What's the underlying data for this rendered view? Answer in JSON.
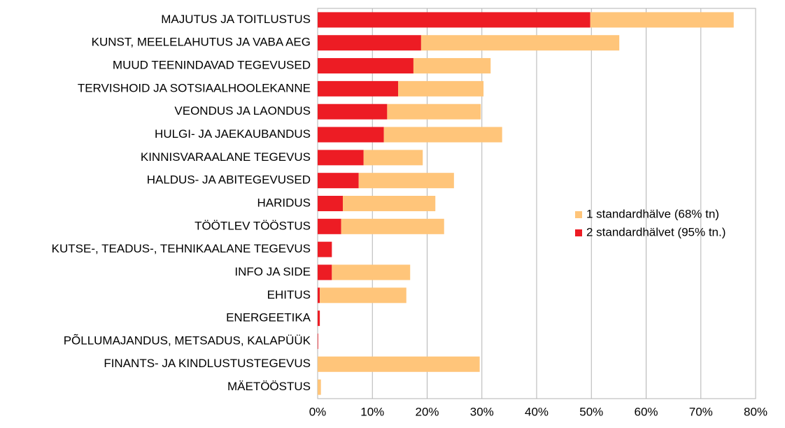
{
  "chart_data": {
    "type": "stacked-barh",
    "categories": [
      "MAJUTUS JA TOITLUSTUS",
      "KUNST, MEELELAHUTUS JA VABA AEG",
      "MUUD TEENINDAVAD TEGEVUSED",
      "TERVISHOID JA SOTSIAALHOOLEKANNE",
      "VEONDUS JA LAONDUS",
      "HULGI- JA JAEKAUBANDUS",
      "KINNISVARAALANE TEGEVUS",
      "HALDUS- JA ABITEGEVUSED",
      "HARIDUS",
      "TÖÖTLEV TÖÖSTUS",
      "KUTSE-, TEADUS-, TEHNIKAALANE TEGEVUS",
      "INFO JA SIDE",
      "EHITUS",
      "ENERGEETIKA",
      "PÕLLUMAJANDUS, METSADUS, KALAPÜÜK",
      "FINANTS- JA KINDLUSTUSTEGEVUS",
      "MÄETÖÖSTUS"
    ],
    "series": [
      {
        "name": "2 standardhälvet (95% tn.)",
        "color": "#ed1c24",
        "values": [
          49.8,
          18.9,
          17.5,
          14.7,
          12.7,
          12.1,
          8.4,
          7.5,
          4.6,
          4.3,
          2.6,
          2.6,
          0.4,
          0.4,
          0.1,
          0,
          0
        ]
      },
      {
        "name": "1 standardhälve (68% tn)",
        "color": "#ffc57a",
        "values": [
          26.2,
          36.2,
          14.1,
          15.6,
          17.1,
          21.6,
          10.8,
          17.4,
          16.9,
          18.8,
          0,
          14.3,
          15.8,
          0,
          0,
          29.6,
          0.6
        ]
      }
    ],
    "xlim": [
      0,
      80
    ],
    "xticks": [
      {
        "value": 0,
        "label": "0%"
      },
      {
        "value": 10,
        "label": "10%"
      },
      {
        "value": 20,
        "label": "20%"
      },
      {
        "value": 30,
        "label": "30%"
      },
      {
        "value": 40,
        "label": "40%"
      },
      {
        "value": 50,
        "label": "50%"
      },
      {
        "value": 60,
        "label": "60%"
      },
      {
        "value": 70,
        "label": "70%"
      },
      {
        "value": 80,
        "label": "80%"
      }
    ],
    "grid": true,
    "legend": "right"
  }
}
